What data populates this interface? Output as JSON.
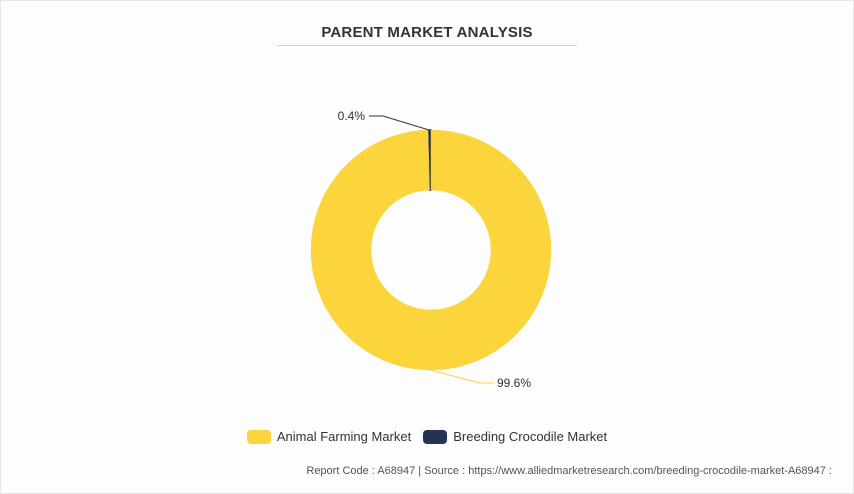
{
  "title": "PARENT MARKET ANALYSIS",
  "chart_data": {
    "type": "pie",
    "donut": true,
    "categories": [
      "Animal Farming Market",
      "Breeding Crocodile Market"
    ],
    "values": [
      99.6,
      0.4
    ],
    "labels": [
      "99.6%",
      "0.4%"
    ],
    "colors": [
      "#fcd43b",
      "#233453"
    ],
    "legend_placement": "bottom"
  },
  "legend": [
    {
      "label": "Animal Farming Market",
      "color": "#fcd43b"
    },
    {
      "label": "Breeding Crocodile Market",
      "color": "#233453"
    }
  ],
  "footer": "Report Code : A68947  |  Source : https://www.alliedmarketresearch.com/breeding-crocodile-market-A68947 :"
}
